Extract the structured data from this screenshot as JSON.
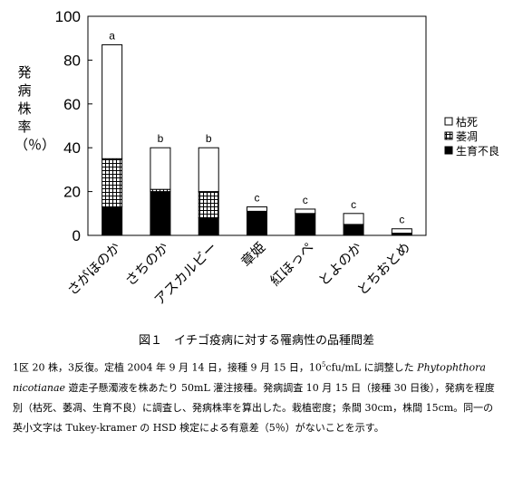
{
  "chart_data": {
    "type": "bar",
    "stacked": true,
    "title": "",
    "xlabel": "",
    "ylabel": "発病株率（％）",
    "ylim": [
      0,
      100
    ],
    "yticks": [
      0,
      20,
      40,
      60,
      80,
      100
    ],
    "categories": [
      "さがほのか",
      "さちのか",
      "アスカルビー",
      "章姫",
      "紅ほっぺ",
      "とよのか",
      "とちおとめ"
    ],
    "series": [
      {
        "name": "生育不良",
        "values": [
          13,
          20,
          8,
          11,
          10,
          5,
          1
        ],
        "color": "#000000",
        "pattern": "solid"
      },
      {
        "name": "萎凋",
        "values": [
          22,
          1,
          12,
          0,
          0,
          0,
          0
        ],
        "color": "#000000",
        "pattern": "grid"
      },
      {
        "name": "枯死",
        "values": [
          52,
          19,
          20,
          2,
          2,
          5,
          2
        ],
        "color": "#ffffff",
        "pattern": "empty"
      }
    ],
    "significance_letters": [
      "a",
      "b",
      "b",
      "c",
      "c",
      "c",
      "c"
    ],
    "legend_position": "right",
    "grid": false
  },
  "figure": {
    "title": "図１　イチゴ疫病に対する罹病性の品種間差"
  },
  "caption": {
    "p1_a": "1区 20 株，3反復。定植 2004 年 9 月 14 日，接種 9 月 15 日，10",
    "p1_sup": "5",
    "p1_b": "cfu/mL に調整した ",
    "species": "Phytophthora nicotianae",
    "p1_c": " 遊走子懸濁液を株あたり 50mL 灌注接種。発病調査 10 月 15 日（接種 30 日後），発病を程度別（枯死、萎凋、生育不良）に調査し、発病株率を算出した。栽植密度；条間 30cm，株間 15cm。同一の英小文字は Tukey-kramer の HSD 検定による有意差（5％）がないことを示す。"
  }
}
